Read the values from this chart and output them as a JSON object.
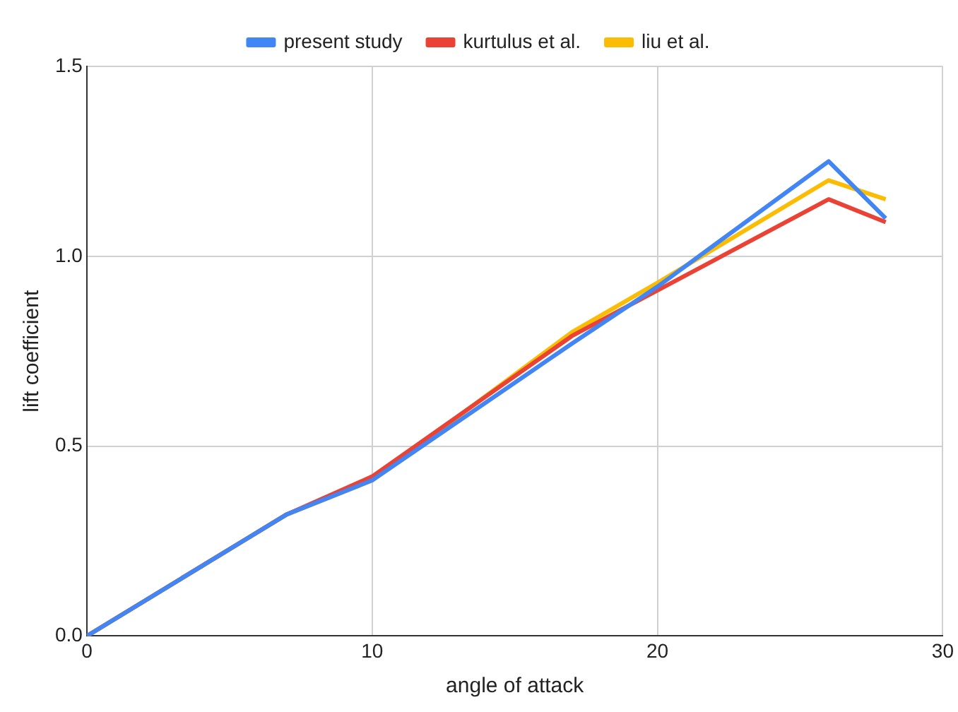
{
  "chart_data": {
    "type": "line",
    "xlabel": "angle of attack",
    "ylabel": "lift coefficient",
    "x": [
      0,
      7,
      10,
      17,
      20,
      26,
      28
    ],
    "series": [
      {
        "name": "present study",
        "color": "#4285f4",
        "values": [
          0,
          0.32,
          0.41,
          0.77,
          0.92,
          1.25,
          1.1
        ]
      },
      {
        "name": "kurtulus et al.",
        "color": "#ea4335",
        "values": [
          0,
          0.32,
          0.42,
          0.79,
          0.91,
          1.15,
          1.09
        ]
      },
      {
        "name": "liu et al.",
        "color": "#fbbc04",
        "values": [
          0,
          0.32,
          0.41,
          0.8,
          0.93,
          1.2,
          1.15
        ]
      }
    ],
    "xlim": [
      0,
      30
    ],
    "xticks": [
      0,
      10,
      20,
      30
    ],
    "ylim": [
      0,
      1.5
    ],
    "yticks": [
      {
        "value": 0,
        "label": "0.0"
      },
      {
        "value": 0.5,
        "label": "0.5"
      },
      {
        "value": 1,
        "label": "1.0"
      },
      {
        "value": 1.5,
        "label": "1.5"
      }
    ],
    "grid": true,
    "legend": "top",
    "marker": "none",
    "line_style": "solid"
  }
}
